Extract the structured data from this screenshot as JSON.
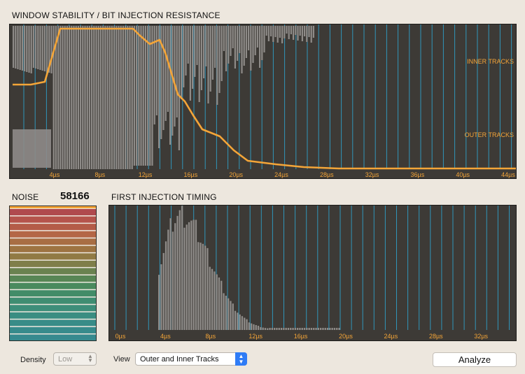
{
  "top_chart": {
    "title": "WINDOW STABILITY / BIT INJECTION RESISTANCE",
    "annotation_inner": "INNER TRACKS",
    "annotation_outer": "OUTER TRACKS",
    "tick_labels": [
      "4µs",
      "8µs",
      "12µs",
      "16µs",
      "20µs",
      "24µs",
      "28µs",
      "32µs",
      "36µs",
      "40µs",
      "44µs"
    ],
    "colors": {
      "background": "#3d3a36",
      "bars": "#8e8b88",
      "gridlines": "#2f9fc8",
      "line": "#f4a538",
      "text": "#f4a538"
    }
  },
  "noise": {
    "label": "NOISE",
    "value": "58166"
  },
  "bottom_chart": {
    "title": "FIRST INJECTION TIMING",
    "tick_labels": [
      "0µs",
      "4µs",
      "8µs",
      "12µs",
      "16µs",
      "20µs",
      "24µs",
      "28µs",
      "32µs"
    ]
  },
  "controls": {
    "density_label": "Density",
    "density_value": "Low",
    "view_label": "View",
    "view_value": "Outer and Inner Tracks",
    "analyze_label": "Analyze"
  }
}
